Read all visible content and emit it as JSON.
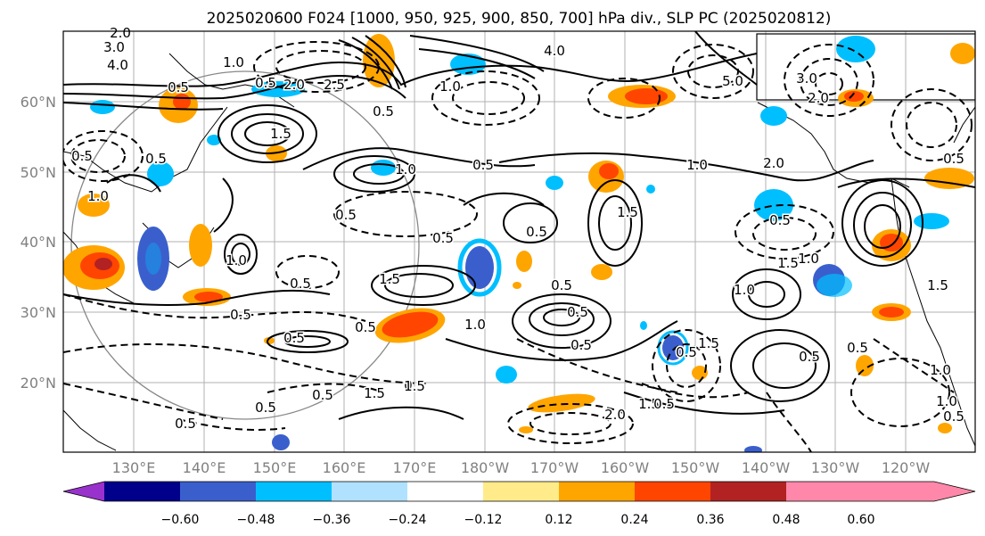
{
  "title": "2025020600 F024 [1000, 950, 925, 900, 850, 700] hPa div., SLP PC (2025020812)",
  "lat_labels": [
    "60°N",
    "50°N",
    "40°N",
    "30°N",
    "20°N"
  ],
  "lon_labels": [
    "130°E",
    "140°E",
    "150°E",
    "160°E",
    "170°E",
    "180°W",
    "170°W",
    "160°W",
    "150°W",
    "140°W",
    "130°W",
    "120°W"
  ],
  "colorbar": {
    "ticks": [
      "−0.60",
      "−0.48",
      "−0.36",
      "−0.24",
      "−0.12",
      "0.12",
      "0.24",
      "0.36",
      "0.48",
      "0.60"
    ],
    "colors": [
      "#9932cc",
      "#00008b",
      "#3a5fcd",
      "#00bfff",
      "#b0e2ff",
      "#ffffff",
      "#ffeb8a",
      "#ffa500",
      "#ff4500",
      "#b22222",
      "#ff88aa"
    ]
  },
  "contour_labels": [
    "2.0",
    "3.0",
    "4.0",
    "0.5",
    "1.0",
    "2.0",
    "2.5",
    "0.5",
    "1.5",
    "4.0",
    "3.0",
    "2.0",
    "5.0",
    "1.0",
    "0.5",
    "0.5",
    "1.0",
    "0.5",
    "1.0",
    "0.5",
    "1.0",
    "0.5",
    "1.5",
    "2.0",
    "0.5",
    "0.5",
    "1.5",
    "0.5",
    "0.5",
    "1.5",
    "1.0",
    "0.5",
    "0.5",
    "1.0",
    "0.5",
    "0.5",
    "1.0",
    "0.5",
    "1.0",
    "0.5",
    "1.5",
    "0.5",
    "0.5",
    "1.5",
    "2.0",
    "1.5",
    "0.5",
    "0.5",
    "1.5",
    "0.5",
    "0.5",
    "1.0",
    "1.0",
    "1.5",
    "0.5",
    "0.5",
    "0.5",
    "0.5"
  ]
}
